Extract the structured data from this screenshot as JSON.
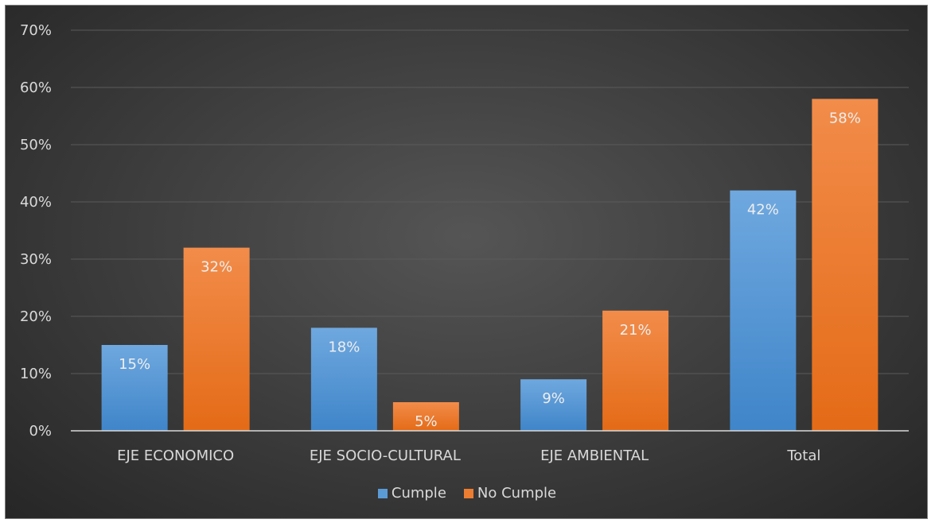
{
  "chart_data": {
    "type": "bar",
    "categories": [
      "EJE ECONOMICO",
      "EJE SOCIO-CULTURAL",
      "EJE AMBIENTAL",
      "Total"
    ],
    "series": [
      {
        "name": "Cumple",
        "values": [
          15,
          18,
          9,
          42
        ],
        "labels": [
          "15%",
          "18%",
          "9%",
          "42%"
        ],
        "color": "#5b9bd5"
      },
      {
        "name": "No Cumple",
        "values": [
          32,
          5,
          21,
          58
        ],
        "labels": [
          "32%",
          "5%",
          "21%",
          "58%"
        ],
        "color": "#ed7d31"
      }
    ],
    "ylim": [
      0,
      70
    ],
    "yticks": [
      0,
      10,
      20,
      30,
      40,
      50,
      60,
      70
    ],
    "ytick_labels": [
      "0%",
      "10%",
      "20%",
      "30%",
      "40%",
      "50%",
      "60%",
      "70%"
    ],
    "grid": true,
    "legend_position": "bottom",
    "background": "#404040"
  }
}
